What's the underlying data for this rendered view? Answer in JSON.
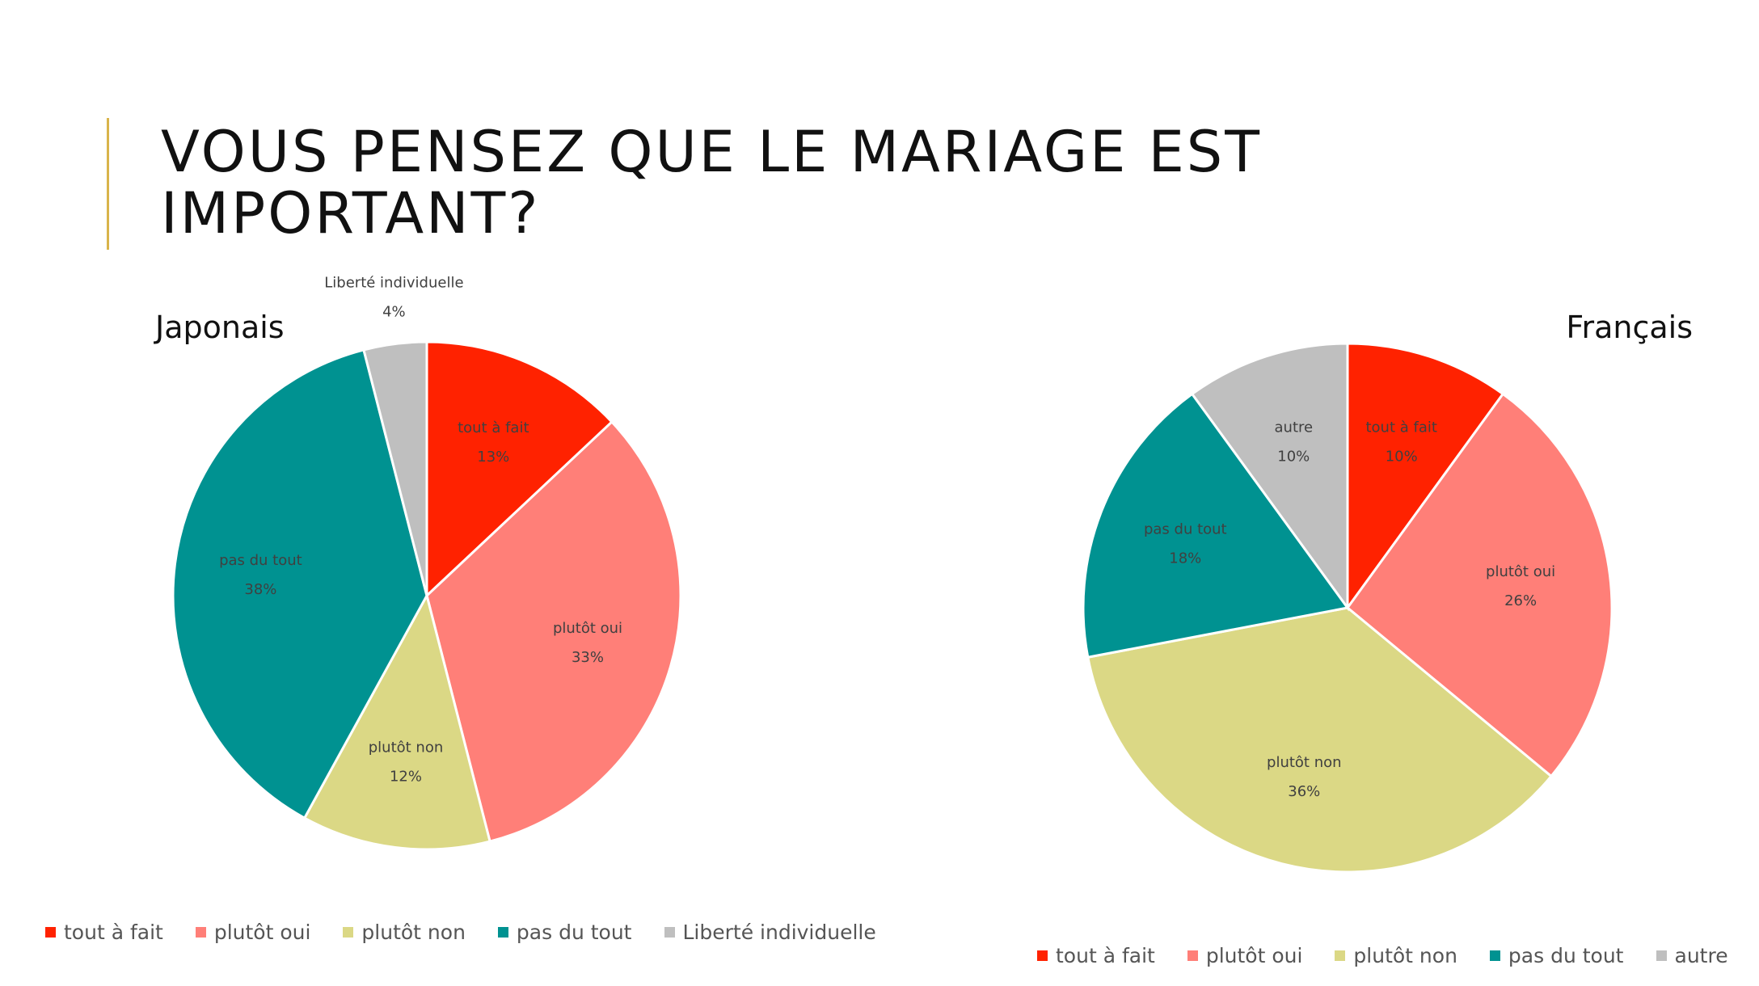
{
  "slide": {
    "title": "VOUS PENSEZ QUE LE MARIAGE EST\nIMPORTANT?",
    "accent_color": "#d9b44a"
  },
  "chart_data": [
    {
      "type": "pie",
      "title": "Japonais",
      "legend_position": "bottom",
      "slices": [
        {
          "label": "tout à fait",
          "value": 13,
          "display": "13%",
          "color": "#ff2200"
        },
        {
          "label": "plutôt oui",
          "value": 33,
          "display": "33%",
          "color": "#ff7f78"
        },
        {
          "label": "plutôt non",
          "value": 12,
          "display": "12%",
          "color": "#dbd885"
        },
        {
          "label": "pas du tout",
          "value": 38,
          "display": "38%",
          "color": "#009291"
        },
        {
          "label": "Liberté individuelle",
          "value": 4,
          "display": "4%",
          "color": "#bfbfbf"
        }
      ]
    },
    {
      "type": "pie",
      "title": "Français",
      "legend_position": "bottom",
      "slices": [
        {
          "label": "tout à fait",
          "value": 10,
          "display": "10%",
          "color": "#ff2200"
        },
        {
          "label": "plutôt oui",
          "value": 26,
          "display": "26%",
          "color": "#ff7f78"
        },
        {
          "label": "plutôt non",
          "value": 36,
          "display": "36%",
          "color": "#dbd885"
        },
        {
          "label": "pas du tout",
          "value": 18,
          "display": "18%",
          "color": "#009291"
        },
        {
          "label": "autre",
          "value": 10,
          "display": "10%",
          "color": "#bfbfbf"
        }
      ]
    }
  ]
}
